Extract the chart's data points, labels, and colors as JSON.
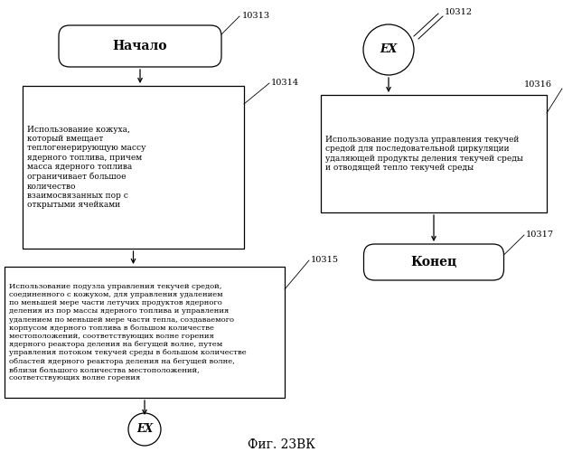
{
  "title": "Фиг. 23ВК",
  "background_color": "#ffffff",
  "nodes": {
    "start_label": "Начало",
    "start_num": "10313",
    "box1_text": "Использование кожуха,\nкоторый вмещает\nтеплогенерирующую массу\nядерного топлива, причем\nмасса ядерного топлива\nограничивает большое\nколичество\nвзаимосвязанных пор с\nоткрытыми ячейками",
    "box1_num": "10314",
    "box2_text": "Использование подузла управления текучей средой,\nсоединенного с кожухом, для управления удалением\nпо меньшей мере части летучих продуктов ядерного\nделения из пор массы ядерного топлива и управления\nудалением по меньшей мере части тепла, создаваемого\nкорпусом ядерного топлива в большом количестве\nместоположений, соответствующих волне горения\nядерного реактора деления на бегущей волне, путем\nуправления потоком текучей среды в большом количестве\nобластей ядерного реактора деления на бегущей волне,\nвблизи большого количества местоположений,\nсоответствующих волне горения",
    "box2_num": "10315",
    "ex_bottom_label": "EX",
    "ex_top_label": "EX",
    "ex_top_num": "10312",
    "box3_text": "Использование подузла управления текучей\nсредой для последовательной циркуляции\nудаляющей продукты деления текучей среды\nи отводящей тепло текучей среды",
    "box3_num": "10316",
    "end_label": "Конец",
    "end_num": "10317"
  }
}
